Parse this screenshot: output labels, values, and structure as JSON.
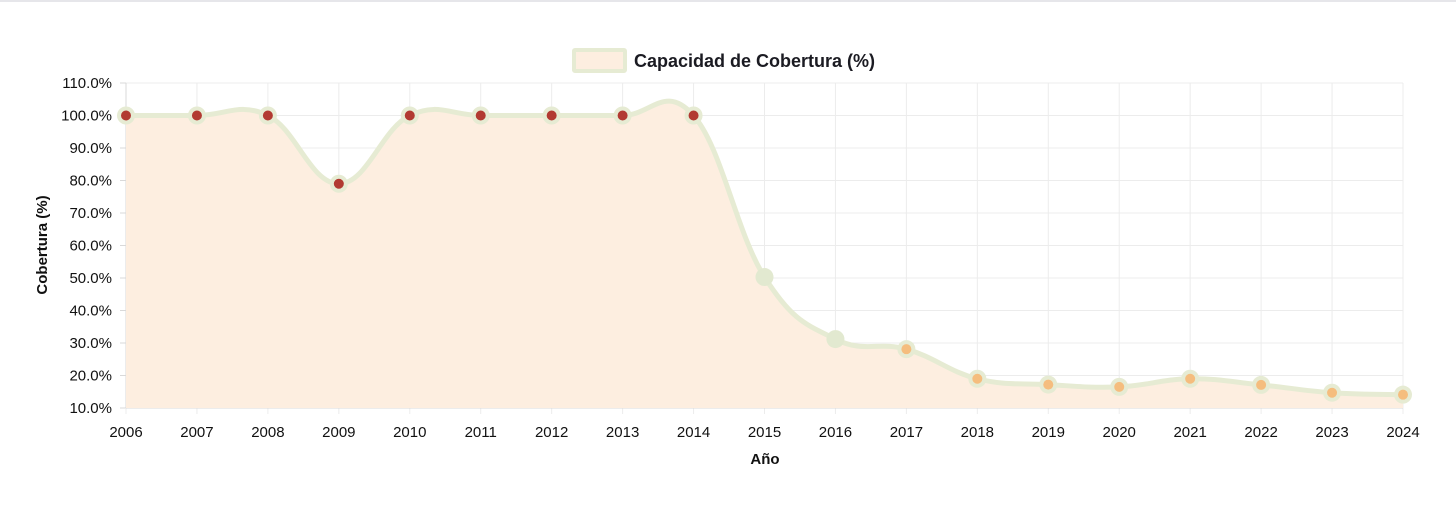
{
  "chart_data": {
    "type": "area",
    "title": "",
    "legend": {
      "position": "top-center",
      "label": "Capacidad de Cobertura (%)"
    },
    "xlabel": "Año",
    "ylabel": "Cobertura (%)",
    "ylim": [
      10,
      110
    ],
    "ytick_step": 10,
    "ytick_labels": [
      "10.0%",
      "20.0%",
      "30.0%",
      "40.0%",
      "50.0%",
      "60.0%",
      "70.0%",
      "80.0%",
      "90.0%",
      "100.0%",
      "110.0%"
    ],
    "grid": true,
    "categories": [
      "2006",
      "2007",
      "2008",
      "2009",
      "2010",
      "2011",
      "2012",
      "2013",
      "2014",
      "2015",
      "2016",
      "2017",
      "2018",
      "2019",
      "2020",
      "2021",
      "2022",
      "2023",
      "2024"
    ],
    "series": [
      {
        "name": "Capacidad de Cobertura (%)",
        "values": [
          100,
          100,
          100,
          79,
          100,
          100,
          100,
          100,
          100,
          50.3,
          31.2,
          28.1,
          19,
          17.2,
          16.5,
          19,
          17.1,
          14.7,
          14.1
        ],
        "point_colors": [
          "#b23a32",
          "#b23a32",
          "#b23a32",
          "#b23a32",
          "#b23a32",
          "#b23a32",
          "#b23a32",
          "#b23a32",
          "#b23a32",
          "#e2e9d0",
          "#e2e9d0",
          "#f5bd7e",
          "#f5bd7e",
          "#f5bd7e",
          "#f5bd7e",
          "#f5bd7e",
          "#f5bd7e",
          "#f5bd7e",
          "#f5bd7e"
        ]
      }
    ],
    "colors": {
      "fill": "#fdeee0",
      "line": "#e6ebd3",
      "grid": "#ececec",
      "axis": "#d9d9d9",
      "point_ring": "#e6ebd3"
    }
  }
}
